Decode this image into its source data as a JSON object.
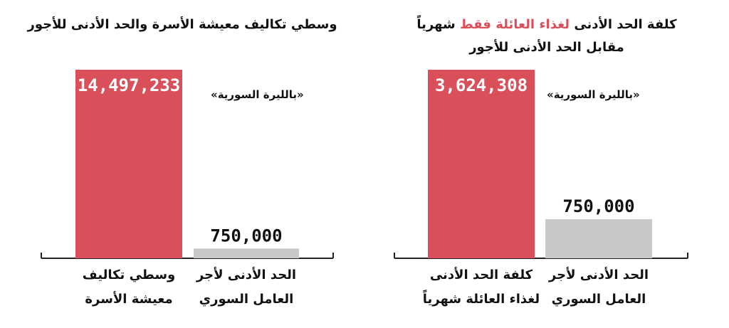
{
  "colors": {
    "primary": "#d9505b",
    "secondary": "#c8c8c8",
    "axis": "#222222"
  },
  "chart_data": [
    {
      "type": "bar",
      "title": "وسطي تكاليف معيشة الأسرة والحد الأدنى للأجور",
      "unit_note": "«بالليرة السورية»",
      "categories": [
        [
          "وسطي تكاليف",
          "معيشة الأسرة"
        ],
        [
          "الحد الأدنى لأجر",
          "العامل السوري"
        ]
      ],
      "values": [
        14497233,
        750000
      ],
      "value_labels": [
        "14,497,233",
        "750,000"
      ],
      "ylim": [
        0,
        14497233
      ],
      "grid": false,
      "legend": "none"
    },
    {
      "type": "bar",
      "title_parts": [
        "كلفة الحد الأدنى ",
        "لغذاء العائلة فقط",
        " شهرياً"
      ],
      "title_line2": "مقابل الحد الأدنى للأجور",
      "unit_note": "«بالليرة السورية»",
      "categories": [
        [
          "كلفة الحد الأدنى",
          "لغذاء العائلة شهرياً"
        ],
        [
          "الحد الأدنى لأجر",
          "العامل السوري"
        ]
      ],
      "values": [
        3624308,
        750000
      ],
      "value_labels": [
        "3,624,308",
        "750,000"
      ],
      "ylim": [
        0,
        3624308
      ],
      "grid": false,
      "legend": "none"
    }
  ]
}
